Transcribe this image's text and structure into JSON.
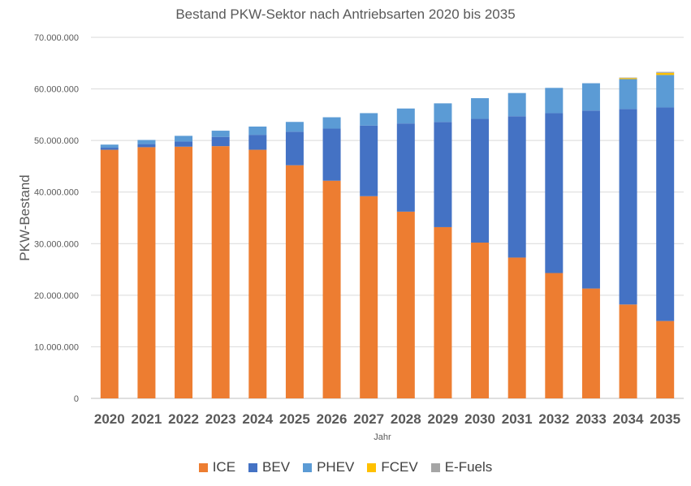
{
  "chart_data": {
    "type": "bar",
    "stacked": true,
    "title": "Bestand PKW-Sektor nach Antriebsarten 2020 bis 2035",
    "xlabel": "Jahr",
    "ylabel": "PKW-Bestand",
    "ylim": [
      0,
      70000000
    ],
    "yticks": [
      0,
      10000000,
      20000000,
      30000000,
      40000000,
      50000000,
      60000000,
      70000000
    ],
    "ytick_labels": [
      "0",
      "10.000.000",
      "20.000.000",
      "30.000.000",
      "40.000.000",
      "50.000.000",
      "60.000.000",
      "70.000.000"
    ],
    "grid": true,
    "legend_position": "bottom",
    "categories": [
      "2020",
      "2021",
      "2022",
      "2023",
      "2024",
      "2025",
      "2026",
      "2027",
      "2028",
      "2029",
      "2030",
      "2031",
      "2032",
      "2033",
      "2034",
      "2035"
    ],
    "series": [
      {
        "name": "ICE",
        "color": "#ED7D31",
        "values": [
          48200000,
          48700000,
          48800000,
          48900000,
          48200000,
          45200000,
          42200000,
          39200000,
          36200000,
          33200000,
          30200000,
          27300000,
          24300000,
          21300000,
          18200000,
          15000000
        ]
      },
      {
        "name": "BEV",
        "color": "#4472C4",
        "values": [
          400000,
          600000,
          1000000,
          1800000,
          2900000,
          6500000,
          10100000,
          13700000,
          17100000,
          20400000,
          24000000,
          27400000,
          31000000,
          34500000,
          37900000,
          41400000
        ]
      },
      {
        "name": "PHEV",
        "color": "#5B9BD5",
        "values": [
          600000,
          800000,
          1100000,
          1200000,
          1600000,
          1900000,
          2200000,
          2400000,
          2900000,
          3600000,
          4000000,
          4500000,
          4900000,
          5300000,
          5800000,
          6300000
        ]
      },
      {
        "name": "FCEV",
        "color": "#FFC000",
        "values": [
          0,
          0,
          0,
          0,
          0,
          0,
          0,
          0,
          0,
          0,
          0,
          0,
          0,
          0,
          200000,
          400000
        ]
      },
      {
        "name": "E-Fuels",
        "color": "#A5A5A5",
        "values": [
          0,
          0,
          0,
          0,
          0,
          0,
          0,
          0,
          0,
          0,
          0,
          0,
          0,
          0,
          100000,
          200000
        ]
      }
    ]
  }
}
